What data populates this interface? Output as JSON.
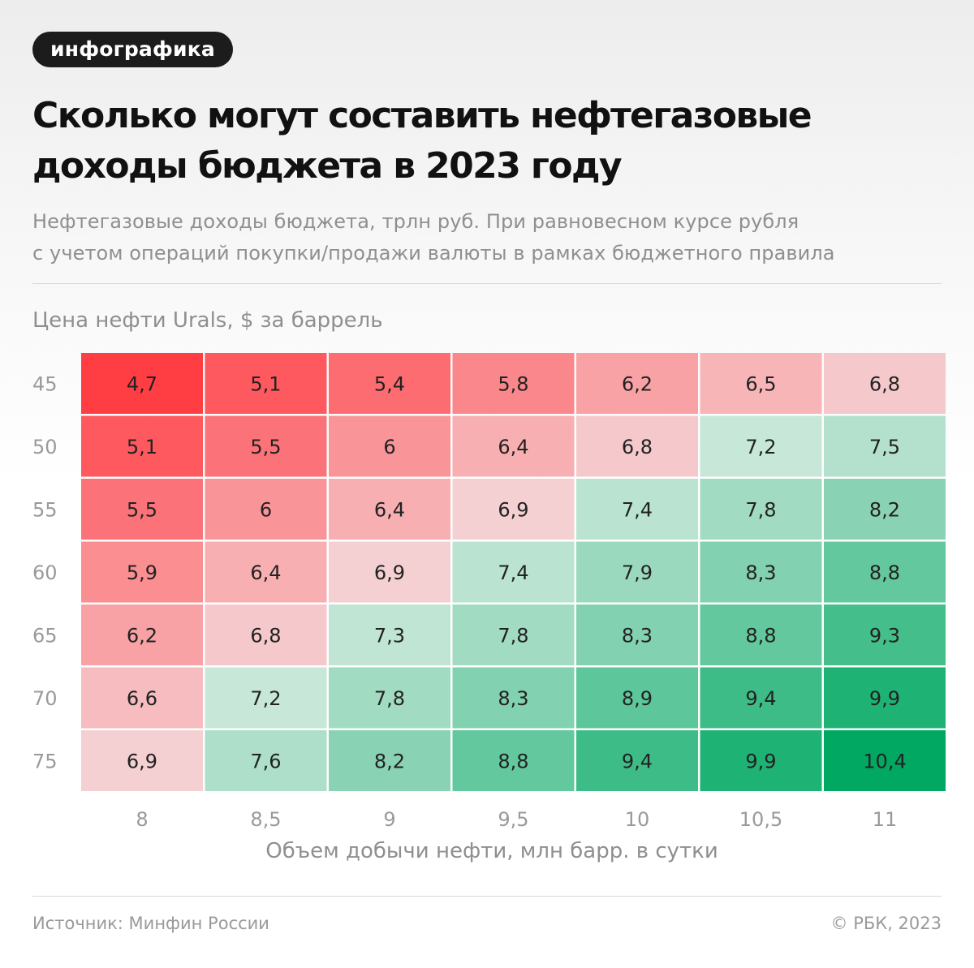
{
  "badge": "инфографика",
  "title_lines": [
    "Сколько могут составить нефтегазовые",
    "доходы бюджета в 2023 году"
  ],
  "subtitle_lines": [
    "Нефтегазовые доходы бюджета, трлн руб. При равновесном курсе рубля",
    "с учетом операций покупки/продажи валюты в рамках бюджетного правила"
  ],
  "footer": {
    "source": "Источник: Минфин России",
    "copyright": "© РБК, 2023"
  },
  "colors": {
    "red_strong": "#ff3e44",
    "red_light": "#f5d0d2",
    "green_light": "#d3ebe0",
    "green_strong": "#00a862",
    "cell_text": "#222222",
    "tick_text": "#9a9a9a"
  },
  "chart_data": {
    "type": "heatmap",
    "title": "Сколько могут составить нефтегазовые доходы бюджета в 2023 году",
    "ylabel": "Цена нефти Urals, $ за баррель",
    "xlabel": "Объем добычи нефти, млн барр. в сутки",
    "y": [
      "45",
      "50",
      "55",
      "60",
      "65",
      "70",
      "75"
    ],
    "x": [
      "8",
      "8,5",
      "9",
      "9,5",
      "10",
      "10,5",
      "11"
    ],
    "values": [
      [
        "4,7",
        "5,1",
        "5,4",
        "5,8",
        "6,2",
        "6,5",
        "6,8"
      ],
      [
        "5,1",
        "5,5",
        "6",
        "6,4",
        "6,8",
        "7,2",
        "7,5"
      ],
      [
        "5,5",
        "6",
        "6,4",
        "6,9",
        "7,4",
        "7,8",
        "8,2"
      ],
      [
        "5,9",
        "6,4",
        "6,9",
        "7,4",
        "7,9",
        "8,3",
        "8,8"
      ],
      [
        "6,2",
        "6,8",
        "7,3",
        "7,8",
        "8,3",
        "8,8",
        "9,3"
      ],
      [
        "6,6",
        "7,2",
        "7,8",
        "8,3",
        "8,9",
        "9,4",
        "9,9"
      ],
      [
        "6,9",
        "7,6",
        "8,2",
        "8,8",
        "9,4",
        "9,9",
        "10,4"
      ]
    ],
    "color_scale": "diverging red (low) to green (high)",
    "legend": "none",
    "grid": false
  }
}
